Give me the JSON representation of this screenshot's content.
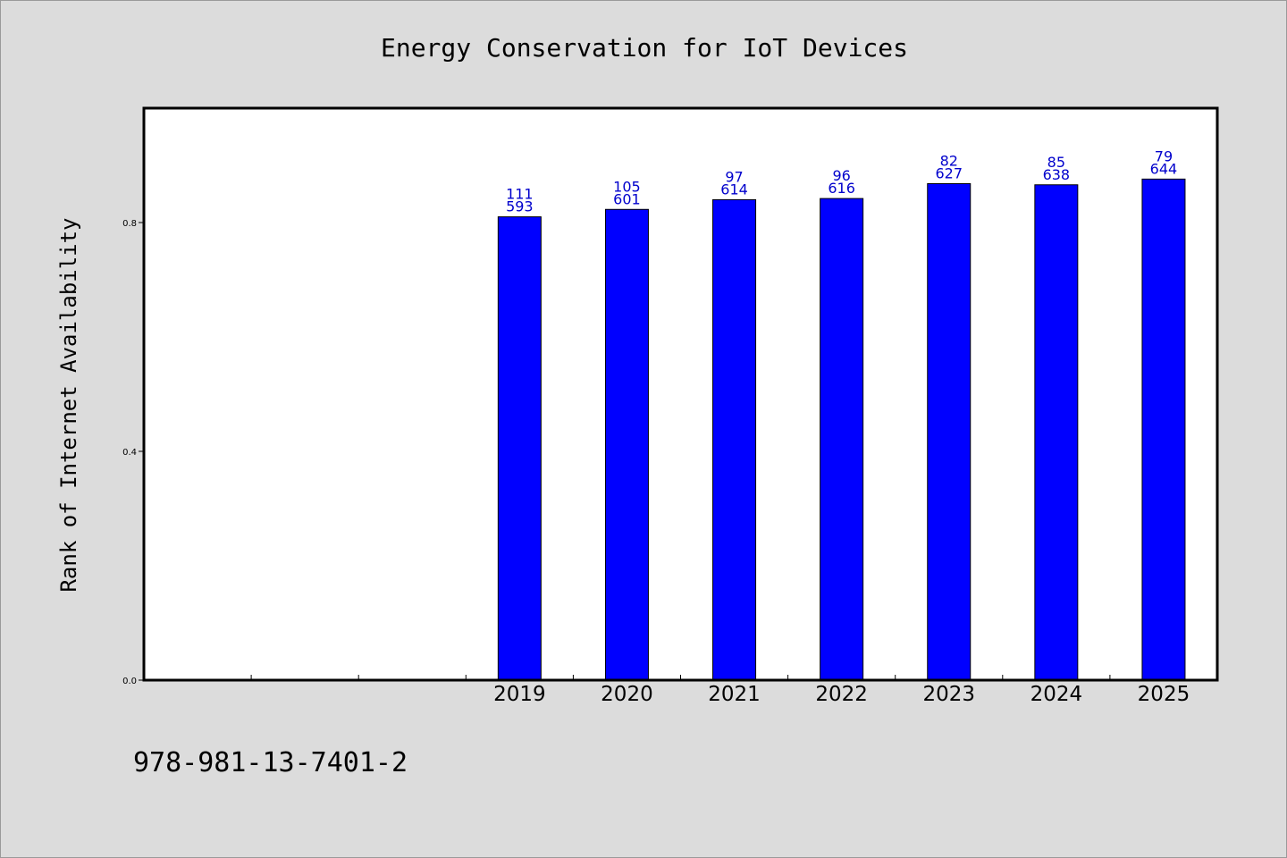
{
  "colors": {
    "background": "#dcdcdc",
    "plot_background": "#ffffff",
    "bar_fill": "#0000ff",
    "bar_label": "#0000cc",
    "axes": "#000000"
  },
  "footer": {
    "code": "978-981-13-7401-2"
  },
  "chart_data": {
    "type": "bar",
    "title": "Energy Conservation for IoT Devices",
    "xlabel": "",
    "ylabel": "Rank of Internet Availability",
    "grid": false,
    "ylim": [
      0,
      1.0
    ],
    "xlim_slots": 10,
    "yticks": [
      {
        "value": 0.0,
        "label": "0.0"
      },
      {
        "value": 0.4,
        "label": "0.4"
      },
      {
        "value": 0.8,
        "label": "0.8"
      }
    ],
    "x_tick_slots": [
      1,
      2,
      3,
      4,
      5,
      6,
      7,
      8,
      9
    ],
    "categories": [
      "2019",
      "2020",
      "2021",
      "2022",
      "2023",
      "2024",
      "2025"
    ],
    "category_slots": [
      3.5,
      4.5,
      5.5,
      6.5,
      7.5,
      8.5,
      9.5
    ],
    "values": [
      0.81,
      0.823,
      0.84,
      0.842,
      0.868,
      0.866,
      0.876
    ],
    "bar_labels": [
      [
        "111",
        "593"
      ],
      [
        "105",
        "601"
      ],
      [
        "97",
        "614"
      ],
      [
        "96",
        "616"
      ],
      [
        "82",
        "627"
      ],
      [
        "85",
        "638"
      ],
      [
        "79",
        "644"
      ]
    ]
  }
}
